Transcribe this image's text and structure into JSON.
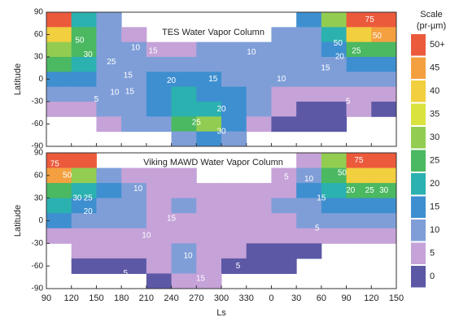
{
  "chart_data": [
    {
      "type": "heatmap",
      "title": "TES Water Vapor Column",
      "ylabel": "Latitude",
      "xlim": [
        90,
        510
      ],
      "ylim": [
        -90,
        90
      ],
      "yticks": [
        -90,
        -60,
        -30,
        0,
        30,
        60,
        90
      ],
      "x": [
        105,
        135,
        165,
        195,
        225,
        255,
        285,
        315,
        345,
        375,
        405,
        435,
        465,
        495
      ],
      "y": [
        80,
        60,
        40,
        20,
        0,
        -20,
        -40,
        -60,
        -80
      ],
      "values": [
        [
          50,
          20,
          12,
          null,
          null,
          null,
          null,
          null,
          null,
          null,
          15,
          30,
          50,
          60
        ],
        [
          40,
          25,
          12,
          8,
          null,
          null,
          null,
          null,
          null,
          10,
          14,
          22,
          40,
          45
        ],
        [
          30,
          25,
          14,
          10,
          9,
          9,
          10,
          10,
          10,
          10,
          12,
          18,
          25,
          25
        ],
        [
          25,
          22,
          14,
          12,
          11,
          12,
          12,
          12,
          12,
          10,
          12,
          14,
          18,
          18
        ],
        [
          18,
          18,
          14,
          14,
          15,
          16,
          15,
          14,
          12,
          10,
          10,
          12,
          12,
          12
        ],
        [
          10,
          12,
          12,
          14,
          18,
          20,
          18,
          15,
          10,
          8,
          7,
          8,
          8,
          8
        ],
        [
          6,
          8,
          10,
          12,
          16,
          22,
          22,
          16,
          10,
          6,
          4,
          4,
          5,
          4
        ],
        [
          null,
          null,
          6,
          10,
          14,
          25,
          30,
          18,
          8,
          4,
          2,
          2,
          null,
          null
        ],
        [
          null,
          null,
          null,
          null,
          null,
          12,
          18,
          10,
          null,
          null,
          null,
          null,
          null,
          null
        ]
      ],
      "annotations": [
        {
          "text": "50",
          "x": 130,
          "y": 52
        },
        {
          "text": "30",
          "x": 140,
          "y": 33
        },
        {
          "text": "25",
          "x": 168,
          "y": 23
        },
        {
          "text": "10",
          "x": 197,
          "y": 42
        },
        {
          "text": "15",
          "x": 218,
          "y": 38
        },
        {
          "text": "15",
          "x": 188,
          "y": 5
        },
        {
          "text": "20",
          "x": 240,
          "y": -2
        },
        {
          "text": "15",
          "x": 290,
          "y": 0
        },
        {
          "text": "10",
          "x": 172,
          "y": -18
        },
        {
          "text": "15",
          "x": 190,
          "y": -17
        },
        {
          "text": "5",
          "x": 150,
          "y": -27
        },
        {
          "text": "20",
          "x": 300,
          "y": -40
        },
        {
          "text": "25",
          "x": 270,
          "y": -58
        },
        {
          "text": "30",
          "x": 300,
          "y": -70
        },
        {
          "text": "10",
          "x": 336,
          "y": 36
        },
        {
          "text": "10",
          "x": 372,
          "y": 0
        },
        {
          "text": "15",
          "x": 425,
          "y": 15
        },
        {
          "text": "20",
          "x": 442,
          "y": 30
        },
        {
          "text": "25",
          "x": 462,
          "y": 38
        },
        {
          "text": "50",
          "x": 440,
          "y": 48
        },
        {
          "text": "50",
          "x": 487,
          "y": 58
        },
        {
          "text": "75",
          "x": 478,
          "y": 80
        },
        {
          "text": "5",
          "x": 452,
          "y": -30
        }
      ]
    },
    {
      "type": "heatmap",
      "title": "Viking MAWD Water Vapor Column",
      "ylabel": "Latitude",
      "xlabel": "Ls",
      "xlim": [
        90,
        510
      ],
      "ylim": [
        -90,
        90
      ],
      "yticks": [
        -90,
        -60,
        -30,
        0,
        30,
        60,
        90
      ],
      "xticks": [
        90,
        120,
        150,
        180,
        210,
        240,
        270,
        300,
        330,
        {
          "value": 360,
          "label": "0"
        },
        {
          "value": 390,
          "label": "30"
        },
        {
          "value": 420,
          "label": "60"
        },
        {
          "value": 450,
          "label": "90"
        },
        {
          "value": 480,
          "label": "120"
        },
        {
          "value": 510,
          "label": "150"
        }
      ],
      "x": [
        105,
        135,
        165,
        195,
        225,
        255,
        285,
        315,
        345,
        375,
        405,
        435,
        465,
        495
      ],
      "y": [
        80,
        60,
        40,
        20,
        0,
        -20,
        -40,
        -60,
        -80
      ],
      "values": [
        [
          75,
          50,
          null,
          null,
          null,
          null,
          null,
          null,
          null,
          null,
          5,
          30,
          70,
          60
        ],
        [
          45,
          30,
          12,
          8,
          6,
          6,
          null,
          null,
          null,
          7,
          12,
          25,
          40,
          40
        ],
        [
          28,
          24,
          15,
          10,
          8,
          8,
          6,
          6,
          7,
          8,
          15,
          20,
          25,
          25
        ],
        [
          22,
          18,
          14,
          10,
          9,
          10,
          8,
          7,
          8,
          10,
          14,
          18,
          18,
          18
        ],
        [
          15,
          14,
          12,
          10,
          9,
          8,
          7,
          7,
          7,
          8,
          10,
          12,
          12,
          14
        ],
        [
          8,
          9,
          9,
          8,
          7,
          6,
          6,
          6,
          6,
          7,
          7,
          6,
          6,
          6
        ],
        [
          null,
          6,
          6,
          5,
          6,
          10,
          6,
          5,
          4,
          3,
          3,
          null,
          null,
          null
        ],
        [
          null,
          2,
          4,
          4,
          5,
          14,
          6,
          4,
          3,
          2,
          null,
          null,
          null,
          null
        ],
        [
          null,
          null,
          null,
          null,
          4,
          8,
          5,
          null,
          null,
          null,
          null,
          null,
          null,
          null
        ]
      ],
      "annotations": [
        {
          "text": "75",
          "x": 100,
          "y": 75
        },
        {
          "text": "50",
          "x": 115,
          "y": 60
        },
        {
          "text": "30",
          "x": 127,
          "y": 30
        },
        {
          "text": "25",
          "x": 140,
          "y": 30
        },
        {
          "text": "20",
          "x": 140,
          "y": 12
        },
        {
          "text": "10",
          "x": 200,
          "y": 42
        },
        {
          "text": "15",
          "x": 240,
          "y": 3
        },
        {
          "text": "10",
          "x": 210,
          "y": -20
        },
        {
          "text": "10",
          "x": 260,
          "y": -47
        },
        {
          "text": "15",
          "x": 275,
          "y": -77
        },
        {
          "text": "5",
          "x": 185,
          "y": -70
        },
        {
          "text": "5",
          "x": 320,
          "y": -60
        },
        {
          "text": "5",
          "x": 378,
          "y": 58
        },
        {
          "text": "5",
          "x": 415,
          "y": -10
        },
        {
          "text": "15",
          "x": 420,
          "y": 30
        },
        {
          "text": "10",
          "x": 405,
          "y": 55
        },
        {
          "text": "20",
          "x": 455,
          "y": 40
        },
        {
          "text": "25",
          "x": 478,
          "y": 40
        },
        {
          "text": "30",
          "x": 495,
          "y": 40
        },
        {
          "text": "50",
          "x": 445,
          "y": 63
        },
        {
          "text": "75",
          "x": 465,
          "y": 80
        }
      ]
    }
  ],
  "colorbar": {
    "title": [
      "Scale",
      "(pr-µm)"
    ],
    "ticks": [
      0,
      5,
      10,
      15,
      20,
      25,
      30,
      35,
      40,
      45,
      {
        "value": 50,
        "label": "50+"
      }
    ],
    "colors": [
      "#5c58a6",
      "#c5a2d8",
      "#7f9ed8",
      "#3e8fd0",
      "#2bb1b0",
      "#4bb862",
      "#92cd52",
      "#d9e23f",
      "#f1cf3f",
      "#f4a040",
      "#ec5a3c"
    ]
  }
}
